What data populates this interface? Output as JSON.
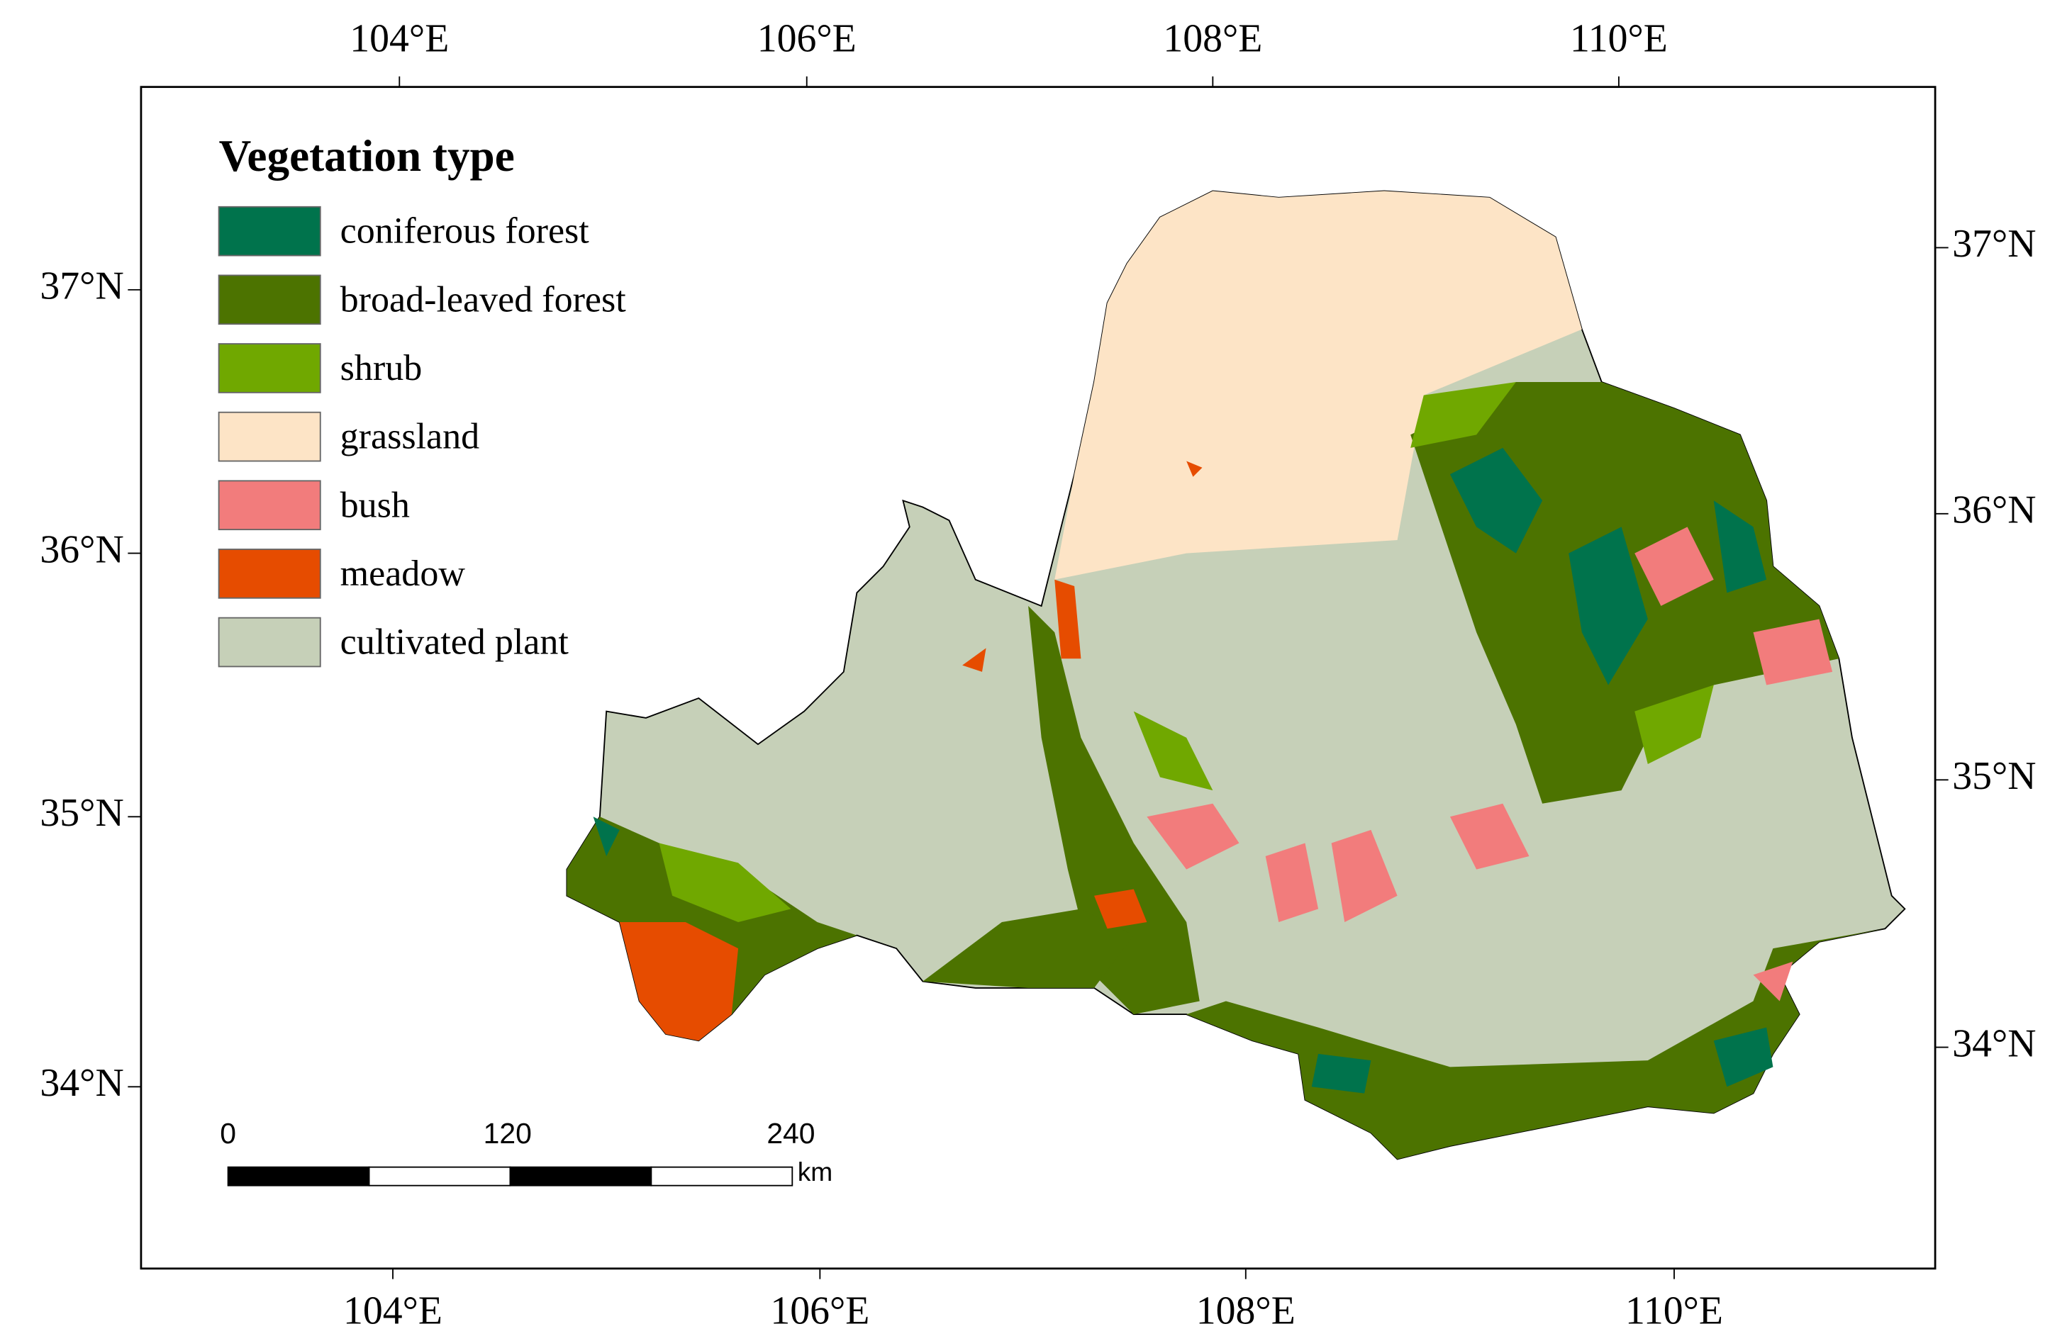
{
  "map": {
    "legend": {
      "title": "Vegetation type",
      "items": [
        {
          "label": "coniferous forest",
          "color": "#00734c"
        },
        {
          "label": "broad-leaved forest",
          "color": "#4c7300"
        },
        {
          "label": "shrub",
          "color": "#70a800"
        },
        {
          "label": "grassland",
          "color": "#fde4c6"
        },
        {
          "label": "bush",
          "color": "#f27c7c"
        },
        {
          "label": "meadow",
          "color": "#e64c00"
        },
        {
          "label": "cultivated plant",
          "color": "#c6d0b8"
        }
      ]
    },
    "axes": {
      "top": [
        "104°E",
        "106°E",
        "108°E",
        "110°E"
      ],
      "bottom": [
        "104°E",
        "106°E",
        "108°E",
        "110°E"
      ],
      "left": [
        "37°N",
        "36°N",
        "35°N",
        "34°N"
      ],
      "right": [
        "37°N",
        "36°N",
        "35°N",
        "34°N"
      ]
    },
    "scale_bar": {
      "labels": [
        "0",
        "120",
        "240"
      ],
      "unit": "km"
    }
  }
}
